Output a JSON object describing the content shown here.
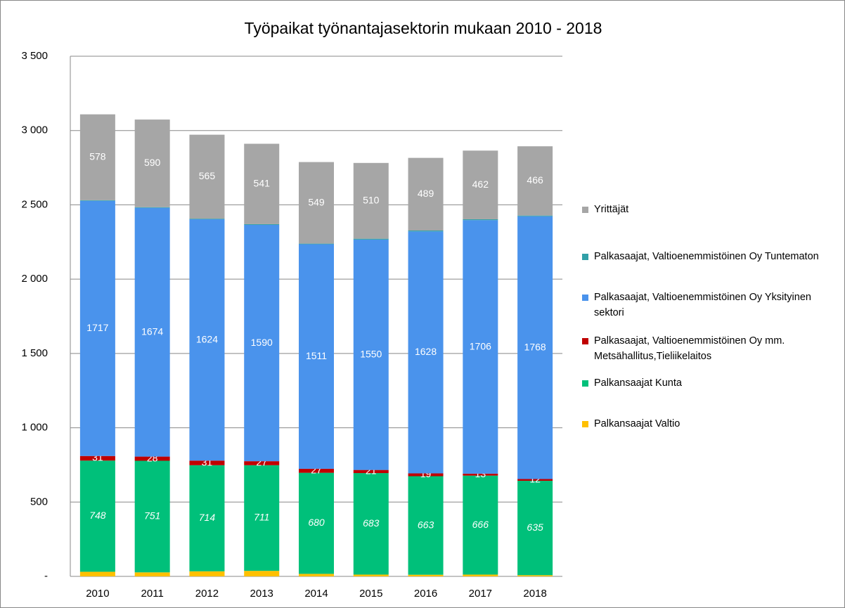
{
  "chart_data": {
    "type": "bar",
    "stacked": true,
    "title": "Työpaikat työnantajasektorin mukaan  2010 - 2018",
    "categories": [
      "2010",
      "2011",
      "2012",
      "2013",
      "2014",
      "2015",
      "2016",
      "2017",
      "2018"
    ],
    "series": [
      {
        "name": "Palkansaajat Valtio",
        "color": "#ffc000",
        "values": [
          31,
          27,
          34,
          37,
          17,
          12,
          11,
          12,
          8
        ]
      },
      {
        "name": "Palkansaajat Kunta",
        "color": "#00c07a",
        "values": [
          748,
          751,
          714,
          711,
          680,
          683,
          663,
          666,
          635
        ]
      },
      {
        "name": "Palkasaajat, Valtioenemmistöinen Oy mm. Metsähallitus,Tieliikelaitos",
        "color": "#c00000",
        "values": [
          31,
          28,
          31,
          27,
          27,
          21,
          19,
          13,
          12
        ]
      },
      {
        "name": "Palkasaajat, Valtioenemmistöinen Oy Yksityinen sektori",
        "color": "#4a93ec",
        "values": [
          1717,
          1674,
          1624,
          1590,
          1511,
          1550,
          1628,
          1706,
          1768
        ]
      },
      {
        "name": "Palkasaajat, Valtioenemmistöinen Oy Tuntematon",
        "color": "#31a0a8",
        "values": [
          4,
          4,
          4,
          5,
          4,
          6,
          6,
          6,
          5
        ]
      },
      {
        "name": "Yrittäjät",
        "color": "#a6a6a6",
        "values": [
          578,
          590,
          565,
          541,
          549,
          510,
          489,
          462,
          466
        ]
      }
    ],
    "ylim": [
      0,
      3500
    ],
    "yticks": [
      {
        "value": 0,
        "label": "-"
      },
      500,
      {
        "value": 1000,
        "label": "1 000"
      },
      {
        "value": 1500,
        "label": "1 500"
      },
      {
        "value": 2000,
        "label": "2 000"
      },
      {
        "value": 2500,
        "label": "2 500"
      },
      {
        "value": 3000,
        "label": "3 000"
      },
      {
        "value": 3500,
        "label": "3 500"
      }
    ],
    "grid": true
  }
}
